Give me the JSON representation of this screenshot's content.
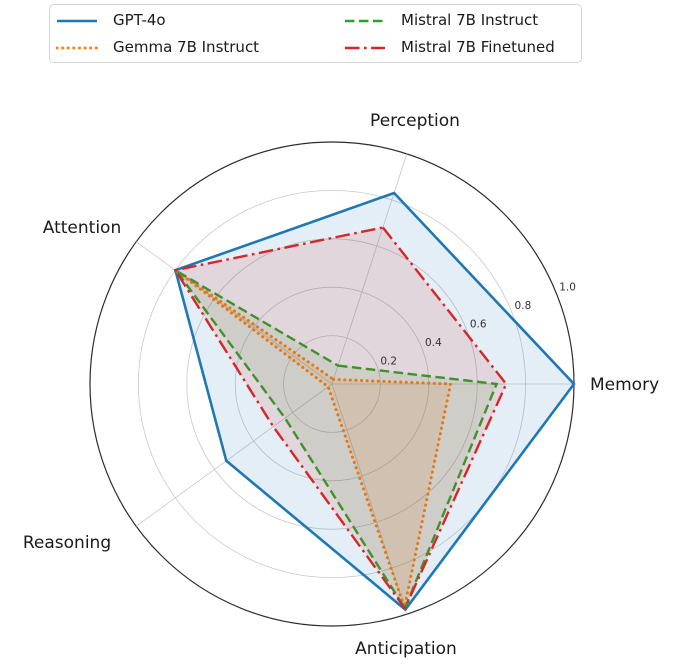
{
  "figure": {
    "background": "#ffffff",
    "grid_color": "#c9c9c9",
    "outer_ring_color": "#2b2b2b",
    "text_color": "#1a1a1a"
  },
  "chart_data": {
    "type": "radar",
    "title": "",
    "categories": [
      "Perception",
      "Memory",
      "Anticipation",
      "Reasoning",
      "Attention"
    ],
    "radial_ticks": [
      "0.2",
      "0.4",
      "0.6",
      "0.8",
      "1.0"
    ],
    "radial_tick_values": [
      0.2,
      0.4,
      0.6,
      0.8,
      1.0
    ],
    "rmin": 0,
    "rmax": 1.0,
    "grid": "on",
    "series": [
      {
        "name": "GPT-4o",
        "color": "#1f77b4",
        "linestyle": "solid",
        "values": [
          0.83,
          1.0,
          0.98,
          0.54,
          0.8
        ]
      },
      {
        "name": "Gemma 7B Instruct",
        "color": "#ff7f0e",
        "linestyle": "dotted",
        "values": [
          0.02,
          0.49,
          0.97,
          0.02,
          0.795
        ]
      },
      {
        "name": "Mistral 7B Instruct",
        "color": "#2ca02c",
        "linestyle": "dashed",
        "values": [
          0.08,
          0.68,
          0.975,
          0.24,
          0.795
        ]
      },
      {
        "name": "Mistral 7B Finetuned",
        "color": "#d62728",
        "linestyle": "dashdot",
        "values": [
          0.68,
          0.72,
          0.975,
          0.3,
          0.8
        ]
      }
    ],
    "legend": {
      "position": "upper-left",
      "columns": 2,
      "fill_order": "column-major"
    }
  }
}
